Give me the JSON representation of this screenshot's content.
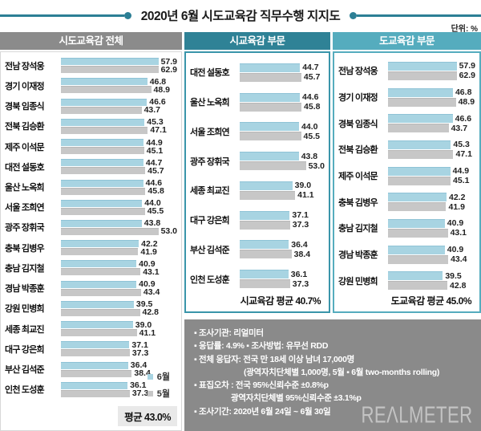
{
  "title": "2020년 6월 시도교육감 직무수행 지지도",
  "unit_label": "단위: %",
  "legend": {
    "june_label": "6월",
    "may_label": "5월"
  },
  "colors": {
    "teal_line": "#2c7f95",
    "gray_header": "#8b8b8b",
    "city_header": "#2f8296",
    "city_border": "#3a95aa",
    "prov_header": "#55acbe",
    "june_bar": "#a8d4e2",
    "may_bar": "#c7c7c7",
    "info_bg": "#8a8a8a",
    "avg_box_bg": "#e9e9e9"
  },
  "scale_max": 63,
  "panels": [
    {
      "header": "시도교육감 전체",
      "avg_label": "평균 43.0%",
      "items": [
        {
          "name": "전남 장석웅",
          "jun": "57.9",
          "may": "62.9"
        },
        {
          "name": "경기 이재정",
          "jun": "46.8",
          "may": "48.9"
        },
        {
          "name": "경북 임종식",
          "jun": "46.6",
          "may": "43.7"
        },
        {
          "name": "전북 김승환",
          "jun": "45.3",
          "may": "47.1"
        },
        {
          "name": "제주 이석문",
          "jun": "44.9",
          "may": "45.1"
        },
        {
          "name": "대전 설동호",
          "jun": "44.7",
          "may": "45.7"
        },
        {
          "name": "울산 노옥희",
          "jun": "44.6",
          "may": "45.8"
        },
        {
          "name": "서울 조희연",
          "jun": "44.0",
          "may": "45.5"
        },
        {
          "name": "광주 장휘국",
          "jun": "43.8",
          "may": "53.0"
        },
        {
          "name": "충북 김병우",
          "jun": "42.2",
          "may": "41.9"
        },
        {
          "name": "충남 김지철",
          "jun": "40.9",
          "may": "43.1"
        },
        {
          "name": "경남 박종훈",
          "jun": "40.9",
          "may": "43.4"
        },
        {
          "name": "강원 민병희",
          "jun": "39.5",
          "may": "42.8"
        },
        {
          "name": "세종 최교진",
          "jun": "39.0",
          "may": "41.1"
        },
        {
          "name": "대구 강은희",
          "jun": "37.1",
          "may": "37.3"
        },
        {
          "name": "부산 김석준",
          "jun": "36.4",
          "may": "38.4"
        },
        {
          "name": "인천 도성훈",
          "jun": "36.1",
          "may": "37.3"
        }
      ]
    },
    {
      "header": "시교육감 부문",
      "avg_label": "시교육감 평균 40.7%",
      "items": [
        {
          "name": "대전 설동호",
          "jun": "44.7",
          "may": "45.7"
        },
        {
          "name": "울산 노옥희",
          "jun": "44.6",
          "may": "45.8"
        },
        {
          "name": "서울 조희연",
          "jun": "44.0",
          "may": "45.5"
        },
        {
          "name": "광주 장휘국",
          "jun": "43.8",
          "may": "53.0"
        },
        {
          "name": "세종 최교진",
          "jun": "39.0",
          "may": "41.1"
        },
        {
          "name": "대구 강은희",
          "jun": "37.1",
          "may": "37.3"
        },
        {
          "name": "부산 김석준",
          "jun": "36.4",
          "may": "38.4"
        },
        {
          "name": "인천 도성훈",
          "jun": "36.1",
          "may": "37.3"
        }
      ]
    },
    {
      "header": "도교육감 부문",
      "avg_label": "도교육감 평균 45.0%",
      "items": [
        {
          "name": "전남 장석웅",
          "jun": "57.9",
          "may": "62.9"
        },
        {
          "name": "경기 이재정",
          "jun": "46.8",
          "may": "48.9"
        },
        {
          "name": "경북 임종식",
          "jun": "46.6",
          "may": "43.7"
        },
        {
          "name": "전북 김승환",
          "jun": "45.3",
          "may": "47.1"
        },
        {
          "name": "제주 이석문",
          "jun": "44.9",
          "may": "45.1"
        },
        {
          "name": "충북 김병우",
          "jun": "42.2",
          "may": "41.9"
        },
        {
          "name": "충남 김지철",
          "jun": "40.9",
          "may": "43.1"
        },
        {
          "name": "경남 박종훈",
          "jun": "40.9",
          "may": "43.4"
        },
        {
          "name": "강원 민병희",
          "jun": "39.5",
          "may": "42.8"
        }
      ]
    }
  ],
  "info_box": {
    "lines": [
      {
        "text": "▪ 조사기관: 리얼미터",
        "indent": 0
      },
      {
        "text": "▪ 응답률: 4.9%  ▪ 조사방법: 유무선 RDD",
        "indent": 0
      },
      {
        "text": "▪ 전체 응답자: 전국 만 18세 이상 남녀 17,000명",
        "indent": 0
      },
      {
        "text": "(광역자치단체별 1,000명, 5월 ▪ 6월 two-months rolling)",
        "indent": 2
      },
      {
        "text": "▪ 표집오차 : 전국 95%신뢰수준 ±0.8%p",
        "indent": 0
      },
      {
        "text": "광역자치단체별 95%신뢰수준 ±3.1%p",
        "indent": 1
      },
      {
        "text": "▪ 조사기간: 2020년 6월 24일 ~ 6월 30일",
        "indent": 0
      }
    ],
    "logo_text": "REΛLMETER"
  },
  "chart_data": [
    {
      "type": "bar",
      "orientation": "horizontal",
      "title": "시도교육감 전체",
      "categories": [
        "전남 장석웅",
        "경기 이재정",
        "경북 임종식",
        "전북 김승환",
        "제주 이석문",
        "대전 설동호",
        "울산 노옥희",
        "서울 조희연",
        "광주 장휘국",
        "충북 김병우",
        "충남 김지철",
        "경남 박종훈",
        "강원 민병희",
        "세종 최교진",
        "대구 강은희",
        "부산 김석준",
        "인천 도성훈"
      ],
      "series": [
        {
          "name": "6월",
          "values": [
            57.9,
            46.8,
            46.6,
            45.3,
            44.9,
            44.7,
            44.6,
            44.0,
            43.8,
            42.2,
            40.9,
            40.9,
            39.5,
            39.0,
            37.1,
            36.4,
            36.1
          ]
        },
        {
          "name": "5월",
          "values": [
            62.9,
            48.9,
            43.7,
            47.1,
            45.1,
            45.7,
            45.8,
            45.5,
            53.0,
            41.9,
            43.1,
            43.4,
            42.8,
            41.1,
            37.3,
            38.4,
            37.3
          ]
        }
      ],
      "average": 43.0,
      "unit": "%",
      "xlim": [
        0,
        65
      ],
      "legend_position": "bottom-right"
    },
    {
      "type": "bar",
      "orientation": "horizontal",
      "title": "시교육감 부문",
      "categories": [
        "대전 설동호",
        "울산 노옥희",
        "서울 조희연",
        "광주 장휘국",
        "세종 최교진",
        "대구 강은희",
        "부산 김석준",
        "인천 도성훈"
      ],
      "series": [
        {
          "name": "6월",
          "values": [
            44.7,
            44.6,
            44.0,
            43.8,
            39.0,
            37.1,
            36.4,
            36.1
          ]
        },
        {
          "name": "5월",
          "values": [
            45.7,
            45.8,
            45.5,
            53.0,
            41.1,
            37.3,
            38.4,
            37.3
          ]
        }
      ],
      "average": 40.7,
      "unit": "%",
      "xlim": [
        0,
        65
      ]
    },
    {
      "type": "bar",
      "orientation": "horizontal",
      "title": "도교육감 부문",
      "categories": [
        "전남 장석웅",
        "경기 이재정",
        "경북 임종식",
        "전북 김승환",
        "제주 이석문",
        "충북 김병우",
        "충남 김지철",
        "경남 박종훈",
        "강원 민병희"
      ],
      "series": [
        {
          "name": "6월",
          "values": [
            57.9,
            46.8,
            46.6,
            45.3,
            44.9,
            42.2,
            40.9,
            40.9,
            39.5
          ]
        },
        {
          "name": "5월",
          "values": [
            62.9,
            48.9,
            43.7,
            47.1,
            45.1,
            41.9,
            43.1,
            43.4,
            42.8
          ]
        }
      ],
      "average": 45.0,
      "unit": "%",
      "xlim": [
        0,
        65
      ]
    }
  ]
}
